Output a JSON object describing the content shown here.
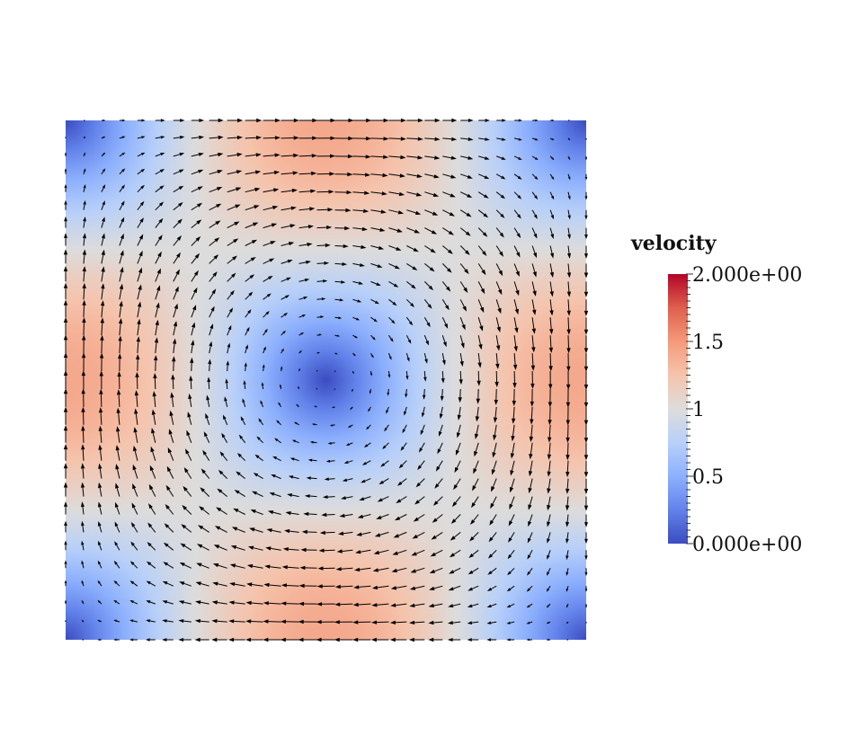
{
  "chart_data": {
    "type": "heatmap",
    "subtype": "vector-field-glyphs",
    "field": "velocity",
    "colormap": "cool-to-warm",
    "colors": {
      "low": "#3b4cc0",
      "mid": "#dddcdc",
      "high": "#b40426",
      "arrows": "#000000"
    },
    "range": [
      0,
      2
    ],
    "field_formula": "u = -sin(pi*x)*cos(pi*y), v = cos(pi*x)*sin(pi*y) on [0,1]x[0,1]; magnitude peaks 2 at edge midpoints, 0 at center and corners",
    "grid_points": 30,
    "scalar_bar": {
      "title": "velocity",
      "labels": [
        "2.000e+00",
        "1.5",
        "1",
        "0.5",
        "0.000e+00"
      ],
      "label_values": [
        2.0,
        1.5,
        1.0,
        0.5,
        0.0
      ],
      "minor_ticks": 40
    }
  }
}
